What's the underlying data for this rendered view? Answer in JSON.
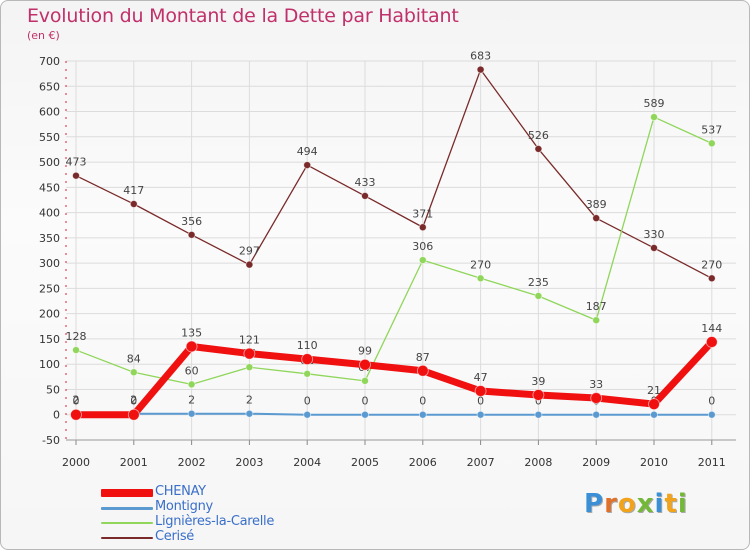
{
  "title": "Evolution du Montant de la Dette par Habitant",
  "unit": "(en €)",
  "logo": {
    "text": "Proxiti",
    "letter_colors": [
      "#3a8fd6",
      "#e0712a",
      "#f2a31c",
      "#74b83a",
      "#3a8fd6",
      "#f2a31c",
      "#74b83a"
    ]
  },
  "chart_data": {
    "type": "line",
    "categories": [
      "2000",
      "2001",
      "2002",
      "2003",
      "2004",
      "2005",
      "2006",
      "2007",
      "2008",
      "2009",
      "2010",
      "2011"
    ],
    "ylim": [
      -50,
      700
    ],
    "yticks": [
      -50,
      0,
      50,
      100,
      150,
      200,
      250,
      300,
      350,
      400,
      450,
      500,
      550,
      600,
      650,
      700
    ],
    "grid": true,
    "legend_position": "bottom-left",
    "series": [
      {
        "name": "CHENAY",
        "color": "#f01010",
        "values": [
          0,
          0,
          135,
          121,
          110,
          99,
          87,
          47,
          39,
          33,
          21,
          144
        ]
      },
      {
        "name": "Montigny",
        "color": "#5a9ad0",
        "values": [
          2,
          2,
          2,
          2,
          0,
          0,
          0,
          0,
          0,
          0,
          0,
          0
        ]
      },
      {
        "name": "Lignières-la-Carelle",
        "color": "#8fd65a",
        "values": [
          128,
          84,
          60,
          94,
          81,
          67,
          306,
          270,
          235,
          187,
          589,
          537
        ]
      },
      {
        "name": "Cerisé",
        "color": "#7a2a2a",
        "values": [
          473,
          417,
          356,
          297,
          494,
          433,
          371,
          683,
          526,
          389,
          330,
          270
        ]
      }
    ],
    "data_labels": {
      "CHENAY": [
        "0",
        "0",
        "135",
        "121",
        "110",
        "99",
        "87",
        "47",
        "39",
        "33",
        "21",
        "144"
      ],
      "Montigny": [
        "2",
        "2",
        "2",
        "2",
        "0",
        "0",
        "0",
        "0",
        "0",
        "0",
        "0",
        "0"
      ],
      "Lignières-la-Carelle": [
        "128",
        "84",
        "60",
        "94",
        "81",
        "67",
        "306",
        "270",
        "235",
        "187",
        "589",
        "537"
      ],
      "Cerisé": [
        "473",
        "417",
        "356",
        "297",
        "494",
        "433",
        "371",
        "683",
        "526",
        "389",
        "330",
        "270"
      ]
    }
  }
}
